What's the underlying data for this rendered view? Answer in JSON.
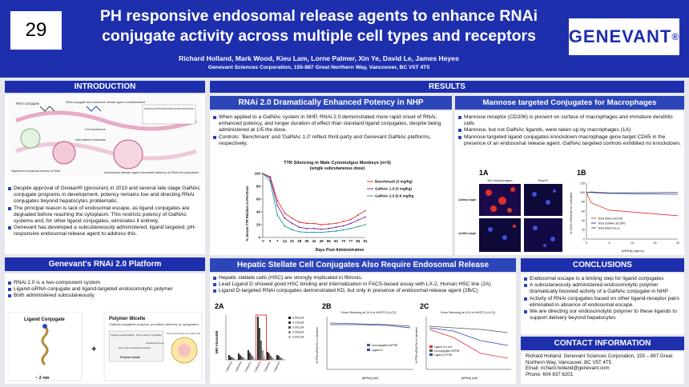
{
  "poster_number": "29",
  "title": "PH responsive endosomal release agents to enhance RNAi conjugate activity across multiple cell types and receptors",
  "authors": "Richard Holland, Mark Wood, Kieu Lam, Lorne Palmer, Xin Ye, David Le, James Heyes",
  "affiliation": "Genevant Sciences Corporation, 155-887 Great Northern Way, Vancouver, BC V5T 4T5",
  "logo_text": "GENEVANT",
  "logo_mark": "®",
  "sections": {
    "introduction": "INTRODUCTION",
    "results": "RESULTS",
    "platform": "Genevant's RNAi 2.0 Platform",
    "conclusions": "CONCLUSIONS",
    "contact": "CONTACT INFORMATION"
  },
  "intro_figure": {
    "rnai_conjugate": "RNAi conjugate",
    "binding_label": "RNAi conjugate and endosome release agent co-administered",
    "targeting_note": "Targeting ligands are matched for RNAi and endosome release agent to allow simultaneous delivery to selected tissues",
    "cell_membrane": "Cell membrane",
    "internalized": "Internalized endosome",
    "sig_release": "Significant endosomal release of RNAi",
    "endosomal_release": "endosomal release agent increases delivery of RNA into cytoplasm"
  },
  "intro_bullets": [
    "Despite approval of Givlaari® (givosiran) in 2019 and several late stage GalNAc conjugate programs in development, potency remains low and directing RNAi conjugates beyond hepatocytes problematic.",
    "The principal reason is lack of endosomal escape, as ligand conjugates are degraded before reaching the cytoplasm. This restricts potency of GalNAc systems and, for other ligand conjugates, eliminates it entirely.",
    "Genevant has developed a subcutaneously administered, ligand targeted, pH-responsive endosomal release agent to address this."
  ],
  "platform_bullets": [
    "RNAi 2.0 is a two-component system",
    "Ligand-siRNA conjugate and ligand-targeted endosomolytic polymer",
    "Both administered subcutaneously"
  ],
  "platform_figure": {
    "ligand_conjugate": "Ligand Conjugate",
    "size": "~ 2 nm",
    "plus": "+",
    "polymer_micelle": "Polymer Micelle",
    "micelle_desc": "GalNAc-targeted polymer provides delivery to cytoplasm",
    "targeting_ligand": "Targeting Ligand (GalNAc)",
    "block1": "Polymer Block 1 (Solubility)",
    "block2": "Polymer Block 2 (Endosome Escape)",
    "individual": "Individual Polymer",
    "self_assemble": "Polymers self assemble into a stable micelle",
    "polymer_detail": "Polymer detail"
  },
  "nhp": {
    "header": "RNAi 2.0 Dramatically Enhanced Potency in NHP",
    "bullets": [
      "When applied to a GalNAc system in NHP, RNAi 2.0 demonstrated more rapid onset of RNAi, enhanced potency, and longer duration of effect than standard ligand conjugates, despite being administered at 1/5 the dose.",
      "Controls: 'Benchmark' and 'GalNAc 1.0' reflect third-party and Genevant GalNAc platforms, respectively."
    ]
  },
  "chart_data": [
    {
      "type": "line",
      "title": "TTR Silencing in Male Cynomolgus Monkeys (n=3)",
      "subtitle": "(single subcutaneous dose)",
      "xlabel": "Days Post Administration",
      "ylabel": "% Serum TTR Relative to Pre-Dose",
      "x": [
        -7,
        0,
        7,
        14,
        21,
        28,
        35,
        42,
        49,
        56,
        63,
        70,
        77,
        84,
        91
      ],
      "ylim": [
        0,
        100
      ],
      "yticks": [
        0,
        20,
        40,
        60,
        80,
        100
      ],
      "series": [
        {
          "name": "Benchmark (3 mg/kg)",
          "color": "#e0302a",
          "values": [
            100,
            95,
            58,
            38,
            30,
            24,
            22,
            22,
            20,
            21,
            22,
            25,
            28,
            35,
            42
          ]
        },
        {
          "name": "GalNAc 1.0 (3 mg/kg)",
          "color": "#7a1fa2",
          "values": [
            100,
            93,
            50,
            30,
            22,
            16,
            14,
            14,
            13,
            14,
            16,
            18,
            22,
            27,
            32
          ]
        },
        {
          "name": "GalNAc 2.0 (0.6 mg/kg)",
          "color": "#1e9b8a",
          "values": [
            100,
            88,
            35,
            18,
            12,
            9,
            8,
            8,
            8,
            9,
            10,
            12,
            14,
            17,
            20
          ]
        }
      ],
      "legend": "right"
    }
  ],
  "mannose": {
    "header": "Mannose targeted Conjugates for Macrophages",
    "bullets": [
      "Mannose receptor (CD206) is present on surface of macrophages and immature dendritic cells",
      "Mannose, but not GalNAc ligands, were taken up by macrophages (1A)",
      "Mannose targeted ligand conjugates knockdown macrophage gene target CD45 in the presence of an endosomal release agent. GalNAc targeted controls exhibited no knockdown."
    ],
    "fig1a_label": "1A",
    "fig1b_label": "1B",
    "m1_label": "M1 macrophages",
    "hepg2_label": "HepG2",
    "row1_label": "Cy3-Mannose Conjugate",
    "row2_label": "Cy3-GalNAc Conjugate",
    "fig1b_ylabel": "% CD45 mRNA Rel to Untreated",
    "fig1b_xlabel": "[siRNA] (ug/mL)",
    "fig1b_xticks": [
      "0",
      "5",
      "10",
      "15",
      "20"
    ],
    "fig1b_yticks": [
      "0",
      "20",
      "40",
      "60",
      "80",
      "100",
      "120"
    ],
    "fig1b_series": [
      {
        "name": "Tetra Mann-siCD45",
        "color": "#e0302a"
      },
      {
        "name": "Tetra GalNAc-siCD45",
        "color": "#1e2fae"
      },
      {
        "name": "Tetra Mann-siLuc",
        "color": "#555555"
      }
    ]
  },
  "hsc": {
    "header": "Hepatic Stellate Cell Conjugates Also Require Endosomal Release",
    "bullets": [
      "Hepatic stellate cells (HSC) are strongly implicated in fibrosis.",
      "Lead Ligand D showed good HSC binding and internalization in FACS-based assay with LX-2, Human HSC line (2A)",
      "Ligand D-targeted RNAi conjugates demonstrated KD, but only in presence of endosomal release agent (2B/C)"
    ],
    "fig2a_label": "2A",
    "fig2b_label": "2B",
    "fig2c_label": "2C",
    "fig2a_ylabel": "MFI Alexa488",
    "fig2a_categories": [
      "Ligand A",
      "Ligand B",
      "Ligand C",
      "Ligand D",
      "Ligand E",
      "Ligand F"
    ],
    "fig2a_legend": [
      "0.500 μM",
      "0.125 μM",
      "0.031 μM",
      "0.008 μM",
      "0.002 μM"
    ],
    "fig2b_title": "Gene Silencing at 24 h in NHST3 (+LC2)",
    "fig2b_legend": [
      "Unconjugated siPPIB",
      "Ligand D"
    ],
    "fig2b_xlabel": "[siRNA] (uM)",
    "fig2c_title": "Gene Silencing at 24 h in NHST3 (+LC2)",
    "fig2c_legend": [
      "Ligand D+Luc2",
      "Unconjugated siPPIB",
      "Ligand D-PPIB"
    ],
    "fig2c_xlabel": "[siRNA] (uM)",
    "fig_ylabel": "% PPIB mRNA Rel to Untreated"
  },
  "conclusion_bullets": [
    "Endosomal escape is a limiting step for ligand conjugates",
    "A subcutaneously administered endosomolytic polymer dramatically boosted activity of a GalNAc conjugate in NHP",
    "Activity of RNAi conjugates based on other ligand-receptor pairs eliminated in absence of endosomal escape.",
    "We are directing our endosomolytic polymer to these ligands to support delivery beyond hepatocytes"
  ],
  "contact": [
    "Richard Holland, Genevant Sciences Corporation, 155 – 887 Great Northern Way, Vancouver, BC V5T 4T5",
    "Email: richard.holland@genevant.com",
    "Phone: 604 837 6201"
  ]
}
